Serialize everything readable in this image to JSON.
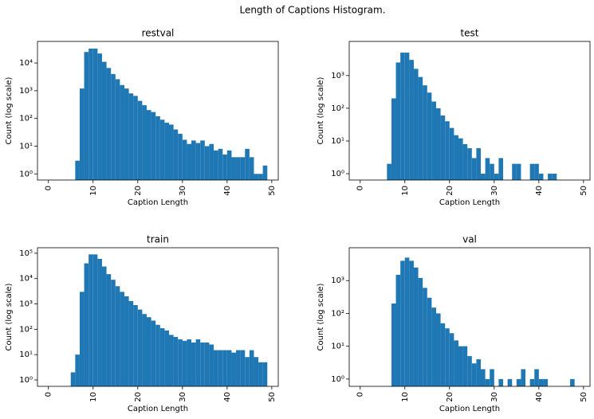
{
  "title": "Length of Captions Histogram.",
  "chart_data": [
    {
      "type": "histogram",
      "title": "restval",
      "xlabel": "Caption Length",
      "ylabel": "Count (log scale)",
      "color": "#1f77b4",
      "yscale": "log",
      "bins": [
        0,
        1,
        2,
        3,
        4,
        5,
        6,
        7,
        8,
        9,
        10,
        11,
        12,
        13,
        14,
        15,
        16,
        17,
        18,
        19,
        20,
        21,
        22,
        23,
        24,
        25,
        26,
        27,
        28,
        29,
        30,
        31,
        32,
        33,
        34,
        35,
        36,
        37,
        38,
        39,
        40,
        41,
        42,
        43,
        44,
        45,
        46,
        47,
        48,
        49
      ],
      "counts": [
        0,
        0,
        0,
        0,
        0,
        0,
        3,
        1200,
        25000,
        33000,
        33000,
        22000,
        11000,
        6600,
        4000,
        2600,
        1600,
        1200,
        800,
        650,
        430,
        300,
        200,
        170,
        120,
        90,
        70,
        60,
        40,
        28,
        17,
        12,
        16,
        13,
        16,
        10,
        12,
        7,
        8,
        5,
        7,
        4,
        4,
        4,
        8,
        4,
        1,
        1,
        2
      ],
      "xlim": [
        -2.45,
        51.45
      ],
      "xticks": [
        0,
        10,
        20,
        30,
        40,
        50
      ],
      "ylim": [
        0.6,
        60000
      ],
      "yticks": [
        {
          "value": 1,
          "label": "10⁰"
        },
        {
          "value": 10,
          "label": "10¹"
        },
        {
          "value": 100,
          "label": "10²"
        },
        {
          "value": 1000,
          "label": "10³"
        },
        {
          "value": 10000,
          "label": "10⁴"
        }
      ]
    },
    {
      "type": "histogram",
      "title": "test",
      "xlabel": "Caption Length",
      "ylabel": "Count (log scale)",
      "color": "#1f77b4",
      "yscale": "log",
      "bins": [
        0,
        1,
        2,
        3,
        4,
        5,
        6,
        7,
        8,
        9,
        10,
        11,
        12,
        13,
        14,
        15,
        16,
        17,
        18,
        19,
        20,
        21,
        22,
        23,
        24,
        25,
        26,
        27,
        28,
        29,
        30,
        31,
        32,
        33,
        34,
        35,
        36,
        37,
        38,
        39,
        40,
        41,
        42,
        43,
        44,
        45,
        46,
        47,
        48,
        49
      ],
      "counts": [
        0,
        0,
        0,
        0,
        0,
        0,
        2,
        200,
        2500,
        5000,
        5000,
        3000,
        1600,
        900,
        500,
        300,
        160,
        100,
        60,
        40,
        25,
        15,
        12,
        8,
        6,
        3,
        6,
        1,
        3,
        2,
        1,
        3,
        0,
        0,
        2,
        2,
        0,
        0,
        2,
        2,
        1,
        0,
        1,
        1,
        0,
        0,
        0,
        0,
        0
      ],
      "xlim": [
        -2.45,
        51.45
      ],
      "xticks": [
        0,
        10,
        20,
        30,
        40,
        50
      ],
      "ylim": [
        0.64,
        11000
      ],
      "yticks": [
        {
          "value": 1,
          "label": "10⁰"
        },
        {
          "value": 10,
          "label": "10¹"
        },
        {
          "value": 100,
          "label": "10²"
        },
        {
          "value": 1000,
          "label": "10³"
        }
      ]
    },
    {
      "type": "histogram",
      "title": "train",
      "xlabel": "Caption Length",
      "ylabel": "Count (log scale)",
      "color": "#1f77b4",
      "yscale": "log",
      "bins": [
        0,
        1,
        2,
        3,
        4,
        5,
        6,
        7,
        8,
        9,
        10,
        11,
        12,
        13,
        14,
        15,
        16,
        17,
        18,
        19,
        20,
        21,
        22,
        23,
        24,
        25,
        26,
        27,
        28,
        29,
        30,
        31,
        32,
        33,
        34,
        35,
        36,
        37,
        38,
        39,
        40,
        41,
        42,
        43,
        44,
        45,
        46,
        47,
        48,
        49
      ],
      "counts": [
        0,
        0,
        0,
        0,
        0,
        2,
        10,
        3000,
        40000,
        90000,
        90000,
        60000,
        30000,
        15000,
        9000,
        5000,
        3000,
        2000,
        1300,
        900,
        600,
        400,
        300,
        220,
        150,
        110,
        90,
        60,
        50,
        40,
        35,
        40,
        30,
        40,
        30,
        30,
        25,
        15,
        15,
        15,
        15,
        12,
        15,
        15,
        8,
        15,
        8,
        5,
        5
      ],
      "xlim": [
        -2.45,
        51.45
      ],
      "xticks": [
        0,
        10,
        20,
        30,
        40,
        50
      ],
      "ylim": [
        0.56,
        165000
      ],
      "yticks": [
        {
          "value": 1,
          "label": "10⁰"
        },
        {
          "value": 10,
          "label": "10¹"
        },
        {
          "value": 100,
          "label": "10²"
        },
        {
          "value": 1000,
          "label": "10³"
        },
        {
          "value": 10000,
          "label": "10⁴"
        },
        {
          "value": 100000,
          "label": "10⁵"
        }
      ]
    },
    {
      "type": "histogram",
      "title": "val",
      "xlabel": "Caption Length",
      "ylabel": "Count (log scale)",
      "color": "#1f77b4",
      "yscale": "log",
      "bins": [
        0,
        1,
        2,
        3,
        4,
        5,
        6,
        7,
        8,
        9,
        10,
        11,
        12,
        13,
        14,
        15,
        16,
        17,
        18,
        19,
        20,
        21,
        22,
        23,
        24,
        25,
        26,
        27,
        28,
        29,
        30,
        31,
        32,
        33,
        34,
        35,
        36,
        37,
        38,
        39,
        40,
        41,
        42,
        43,
        44,
        45,
        46,
        47,
        48,
        49
      ],
      "counts": [
        0,
        0,
        0,
        0,
        0,
        0,
        0,
        200,
        1500,
        4000,
        5000,
        4000,
        2500,
        1200,
        600,
        300,
        150,
        100,
        50,
        35,
        25,
        15,
        10,
        10,
        5,
        3,
        4,
        2,
        1,
        2,
        0,
        1,
        0,
        1,
        0,
        1,
        2,
        0,
        1,
        2,
        1,
        1,
        0,
        0,
        0,
        0,
        0,
        1,
        0
      ],
      "xlim": [
        -2.45,
        51.45
      ],
      "xticks": [
        0,
        10,
        20,
        30,
        40,
        50
      ],
      "ylim": [
        0.6,
        10000
      ],
      "yticks": [
        {
          "value": 1,
          "label": "10⁰"
        },
        {
          "value": 10,
          "label": "10¹"
        },
        {
          "value": 100,
          "label": "10²"
        },
        {
          "value": 1000,
          "label": "10³"
        }
      ]
    }
  ]
}
